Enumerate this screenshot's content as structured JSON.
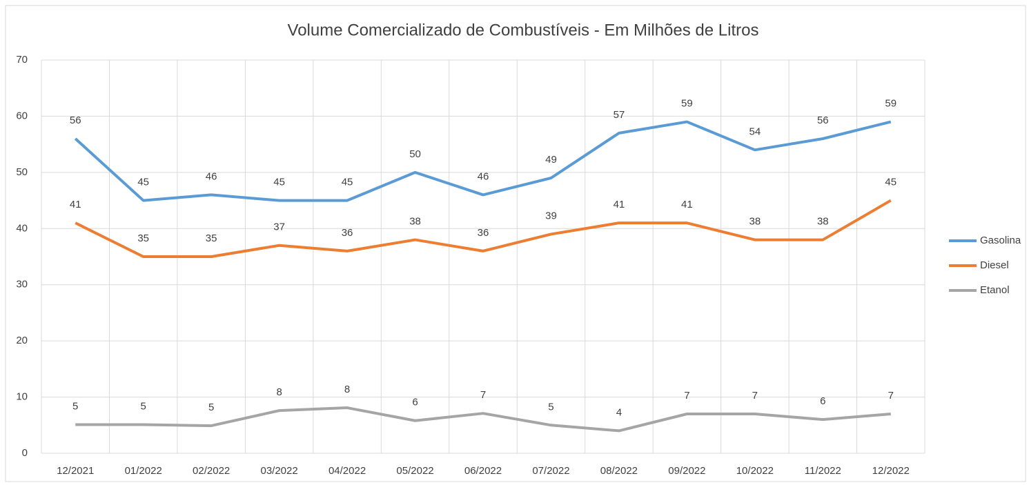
{
  "chart_data": {
    "type": "line",
    "title": "Volume Comercializado de Combustíveis - Em Milhões de Litros",
    "categories": [
      "12/2021",
      "01/2022",
      "02/2022",
      "03/2022",
      "04/2022",
      "05/2022",
      "06/2022",
      "07/2022",
      "08/2022",
      "09/2022",
      "10/2022",
      "11/2022",
      "12/2022"
    ],
    "series": [
      {
        "name": "Gasolina",
        "color": "#5b9bd5",
        "values": [
          56,
          45,
          46,
          45,
          45,
          50,
          46,
          49,
          57,
          59,
          54,
          56,
          59
        ]
      },
      {
        "name": "Diesel",
        "color": "#ed7d31",
        "values": [
          41,
          35,
          35,
          37,
          36,
          38,
          36,
          39,
          41,
          41,
          38,
          38,
          45
        ]
      },
      {
        "name": "Etanol",
        "color": "#a5a5a5",
        "values": [
          5.1,
          5.1,
          4.9,
          7.6,
          8.1,
          5.8,
          7.1,
          5.0,
          4.0,
          7.0,
          7.0,
          6.0,
          7.0
        ],
        "value_labels": [
          "5",
          "5",
          "5",
          "8",
          "8",
          "6",
          "7",
          "5",
          "4",
          "7",
          "7",
          "6",
          "7"
        ]
      }
    ],
    "ylim": [
      0,
      70
    ],
    "yticks": [
      0,
      10,
      20,
      30,
      40,
      50,
      60,
      70
    ],
    "grid": true,
    "legend": "right"
  }
}
